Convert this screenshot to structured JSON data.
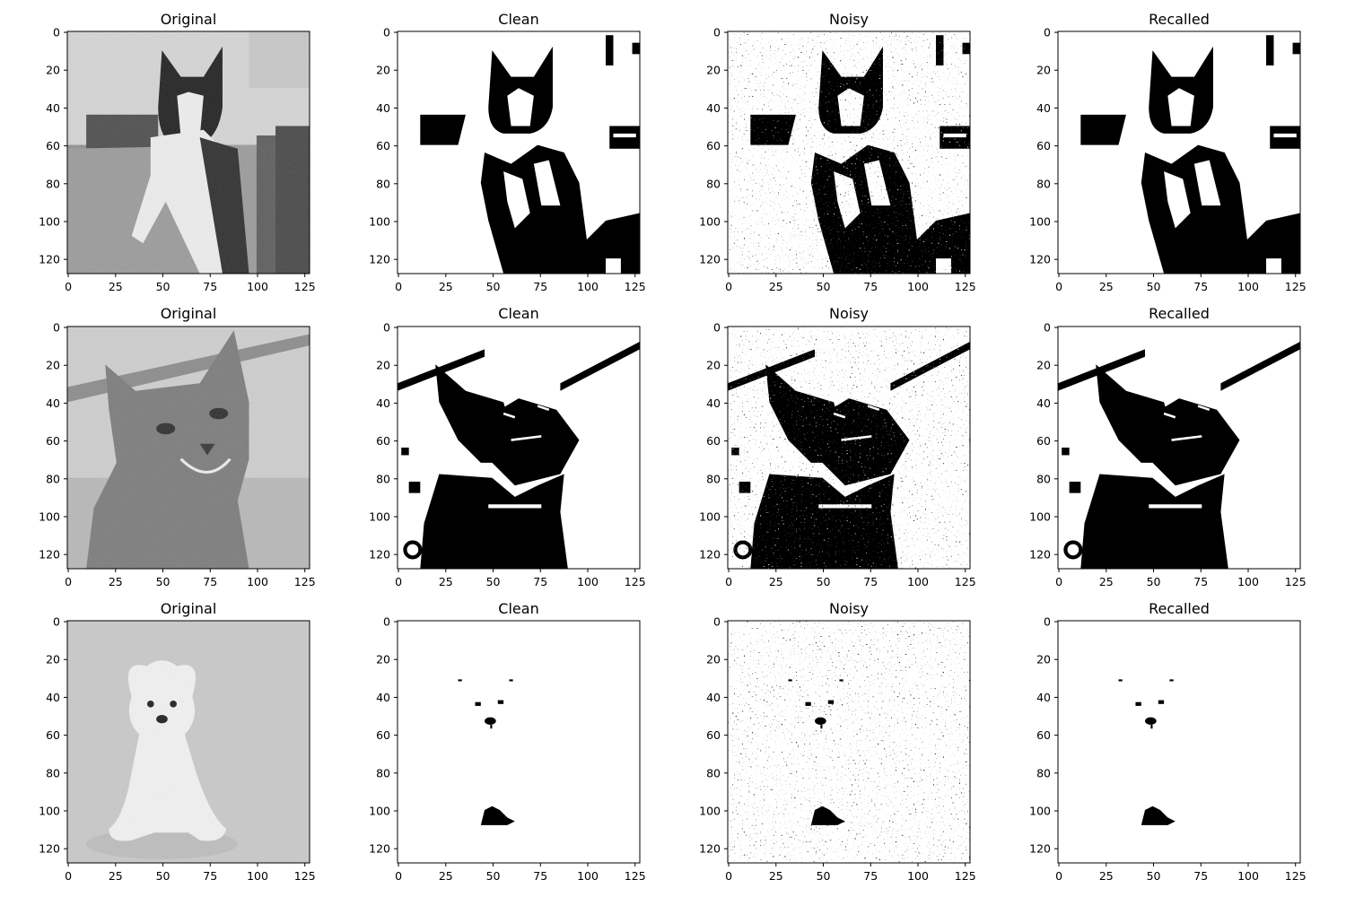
{
  "figure": {
    "column_titles": [
      "Original",
      "Clean",
      "Noisy",
      "Recalled"
    ],
    "x_ticks": [
      "0",
      "25",
      "50",
      "75",
      "100",
      "125"
    ],
    "y_ticks": [
      "0",
      "20",
      "40",
      "60",
      "80",
      "100",
      "120"
    ],
    "rows": [
      {
        "subject": "tuxedo cat on sofa"
      },
      {
        "subject": "grey tabby cat portrait"
      },
      {
        "subject": "white puppy sitting"
      }
    ]
  }
}
